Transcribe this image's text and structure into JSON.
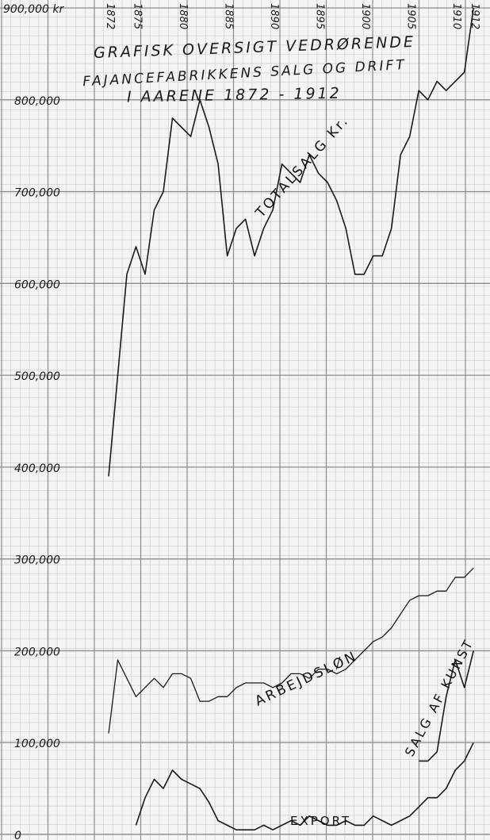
{
  "chart_data": {
    "type": "line",
    "title_lines": [
      "GRAFISK OVERSIGT VEDRØRENDE",
      "FAJANCEFABRIKKENS SALG OG DRIFT",
      "I AARENE 1872 - 1912"
    ],
    "x_tick_labels": [
      "1872",
      "1875",
      "1880",
      "1885",
      "1890",
      "1895",
      "1900",
      "1905",
      "1910",
      "1912"
    ],
    "y_tick_labels": [
      "900,000 kr",
      "800,000",
      "700,000",
      "600,000",
      "500,000",
      "400,000",
      "300,000",
      "200,000",
      "100,000",
      "0"
    ],
    "xlim": [
      1872,
      1912.5
    ],
    "ylim": [
      0,
      900000
    ],
    "grid": true,
    "series": [
      {
        "name": "TOTALSALG Kr.",
        "x": [
          1872,
          1873,
          1874,
          1875,
          1876,
          1877,
          1878,
          1879,
          1880,
          1881,
          1882,
          1883,
          1884,
          1885,
          1886,
          1887,
          1888,
          1889,
          1890,
          1891,
          1892,
          1893,
          1894,
          1895,
          1896,
          1897,
          1898,
          1899,
          1900,
          1901,
          1902,
          1903,
          1904,
          1905,
          1906,
          1907,
          1908,
          1909,
          1910,
          1911,
          1912
        ],
        "values": [
          390000,
          500000,
          610000,
          640000,
          610000,
          680000,
          700000,
          780000,
          770000,
          760000,
          800000,
          770000,
          730000,
          630000,
          660000,
          670000,
          630000,
          660000,
          680000,
          730000,
          720000,
          710000,
          740000,
          720000,
          710000,
          690000,
          660000,
          610000,
          610000,
          630000,
          630000,
          660000,
          740000,
          760000,
          810000,
          800000,
          820000,
          810000,
          820000,
          830000,
          900000
        ]
      },
      {
        "name": "ARBEJDSLØN",
        "x": [
          1872,
          1873,
          1874,
          1875,
          1876,
          1877,
          1878,
          1879,
          1880,
          1881,
          1882,
          1883,
          1884,
          1885,
          1886,
          1887,
          1888,
          1889,
          1890,
          1891,
          1892,
          1893,
          1894,
          1895,
          1896,
          1897,
          1898,
          1899,
          1900,
          1901,
          1902,
          1903,
          1904,
          1905,
          1906,
          1907,
          1908,
          1909,
          1910,
          1911,
          1912
        ],
        "values": [
          110000,
          190000,
          170000,
          150000,
          160000,
          170000,
          160000,
          175000,
          175000,
          170000,
          145000,
          145000,
          150000,
          150000,
          160000,
          165000,
          165000,
          165000,
          160000,
          165000,
          175000,
          175000,
          170000,
          180000,
          180000,
          175000,
          180000,
          190000,
          200000,
          210000,
          215000,
          225000,
          240000,
          255000,
          260000,
          260000,
          265000,
          265000,
          280000,
          280000,
          290000
        ]
      },
      {
        "name": "SALG AF KUNST",
        "x": [
          1906,
          1907,
          1908,
          1909,
          1910,
          1911,
          1912
        ],
        "values": [
          80000,
          80000,
          90000,
          150000,
          190000,
          160000,
          200000
        ]
      },
      {
        "name": "EXPORT",
        "x": [
          1875,
          1876,
          1877,
          1878,
          1879,
          1880,
          1881,
          1882,
          1883,
          1884,
          1885,
          1886,
          1887,
          1888,
          1889,
          1890,
          1891,
          1892,
          1893,
          1894,
          1895,
          1896,
          1897,
          1898,
          1899,
          1900,
          1901,
          1902,
          1903,
          1904,
          1905,
          1906,
          1907,
          1908,
          1909,
          1910,
          1911,
          1912
        ],
        "values": [
          10000,
          40000,
          60000,
          50000,
          70000,
          60000,
          55000,
          50000,
          35000,
          15000,
          10000,
          5000,
          5000,
          5000,
          10000,
          5000,
          10000,
          15000,
          10000,
          20000,
          15000,
          10000,
          10000,
          15000,
          10000,
          10000,
          20000,
          15000,
          10000,
          15000,
          20000,
          30000,
          40000,
          40000,
          50000,
          70000,
          80000,
          100000
        ]
      }
    ]
  },
  "colors": {
    "paper": "#f4f4f4",
    "grid_minor": "#c9c9c9",
    "grid_major": "#8c8c8c",
    "ink": "#1a1a1a"
  }
}
